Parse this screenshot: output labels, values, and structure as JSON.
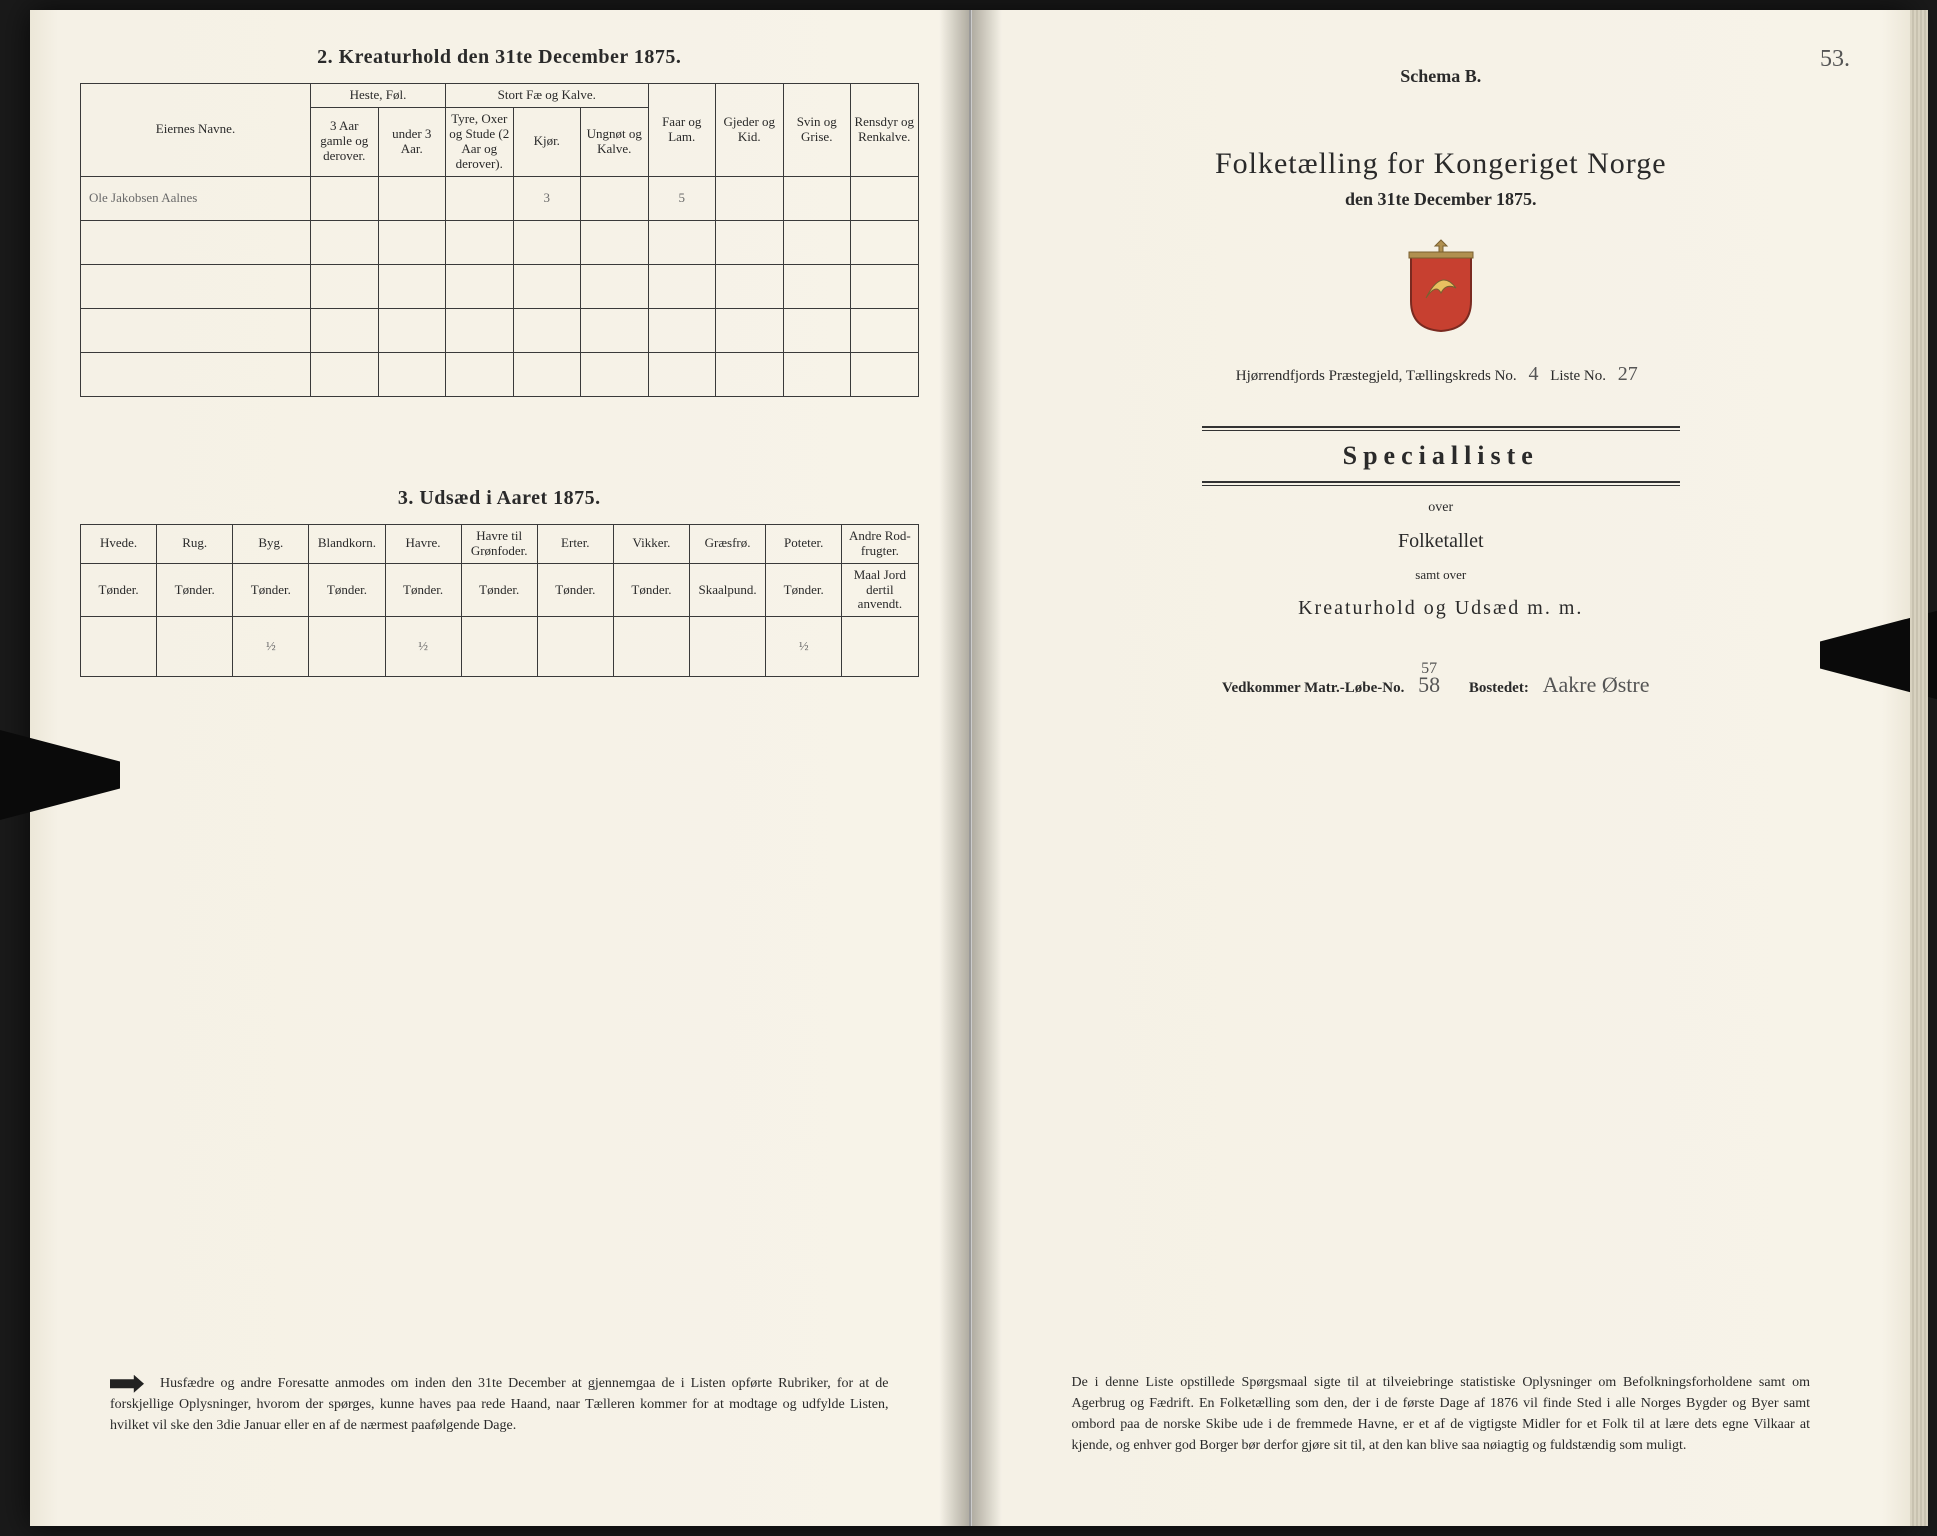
{
  "leftPage": {
    "section2": {
      "title": "2.  Kreaturhold den 31te December 1875.",
      "ownerHeader": "Eiernes Navne.",
      "groupHeaders": {
        "heste": "Heste, Føl.",
        "stortfae": "Stort Fæ og Kalve."
      },
      "cols": {
        "heste1": "3 Aar gamle og derover.",
        "heste2": "under 3 Aar.",
        "fae1": "Tyre, Oxer og Stude (2 Aar og derover).",
        "fae2": "Kjør.",
        "fae3": "Ungnøt og Kalve.",
        "faar": "Faar og Lam.",
        "gjeder": "Gjeder og Kid.",
        "svin": "Svin og Grise.",
        "ren": "Rensdyr og Renkalve."
      },
      "rows": [
        {
          "owner": "Ole Jakobsen Aalnes",
          "values": [
            "",
            "",
            "",
            "3",
            "",
            "5",
            "",
            "",
            ""
          ]
        },
        {
          "owner": "",
          "values": [
            "",
            "",
            "",
            "",
            "",
            "",
            "",
            "",
            ""
          ]
        },
        {
          "owner": "",
          "values": [
            "",
            "",
            "",
            "",
            "",
            "",
            "",
            "",
            ""
          ]
        },
        {
          "owner": "",
          "values": [
            "",
            "",
            "",
            "",
            "",
            "",
            "",
            "",
            ""
          ]
        },
        {
          "owner": "",
          "values": [
            "",
            "",
            "",
            "",
            "",
            "",
            "",
            "",
            ""
          ]
        }
      ]
    },
    "section3": {
      "title": "3.  Udsæd i Aaret 1875.",
      "cols": [
        {
          "name": "Hvede.",
          "unit": "Tønder."
        },
        {
          "name": "Rug.",
          "unit": "Tønder."
        },
        {
          "name": "Byg.",
          "unit": "Tønder."
        },
        {
          "name": "Blandkorn.",
          "unit": "Tønder."
        },
        {
          "name": "Havre.",
          "unit": "Tønder."
        },
        {
          "name": "Havre til Grønfoder.",
          "unit": "Tønder."
        },
        {
          "name": "Erter.",
          "unit": "Tønder."
        },
        {
          "name": "Vikker.",
          "unit": "Tønder."
        },
        {
          "name": "Græsfrø.",
          "unit": "Skaalpund."
        },
        {
          "name": "Poteter.",
          "unit": "Tønder."
        },
        {
          "name": "Andre Rod-frugter.",
          "unit": "Maal Jord dertil anvendt."
        }
      ],
      "row": [
        "",
        "",
        "½",
        "",
        "½",
        "",
        "",
        "",
        "",
        "½",
        ""
      ]
    },
    "footer": "Husfædre og andre Foresatte anmodes om inden den 31te December at gjennemgaa de i Listen opførte Rubriker, for at de forskjellige Oplysninger, hvorom der spørges, kunne haves paa rede Haand, naar Tælleren kommer for at modtage og udfylde Listen, hvilket vil ske den 3die Januar eller en af de nærmest paafølgende Dage."
  },
  "rightPage": {
    "cornerNumber": "53.",
    "schema": "Schema B.",
    "title": "Folketælling for Kongeriget Norge",
    "subtitle": "den 31te December 1875.",
    "parish": "Hjørrendfjords Præstegjeld,  Tællingskreds No.",
    "kredsNo": "4",
    "listeLabel": "Liste No.",
    "listeNo": "27",
    "special": "Specialliste",
    "over": "over",
    "folketallet": "Folketallet",
    "samt": "samt over",
    "kreatur": "Kreaturhold og Udsæd m. m.",
    "vedkommerLabel": "Vedkommer Matr.-Løbe-No.",
    "matrAbove": "57",
    "matrNo": "58",
    "bostedetLabel": "Bostedet:",
    "bostedet": "Aakre Østre",
    "footer": "De i denne Liste opstillede Spørgsmaal sigte til at tilveiebringe statistiske Oplysninger om Befolkningsforholdene samt om Agerbrug og Fædrift.  En Folketælling som den, der i de første Dage af 1876 vil finde Sted i alle Norges Bygder og Byer samt ombord paa de norske Skibe ude i de fremmede Havne, er et af de vigtigste Midler for et Folk til at lære dets egne Vilkaar at kjende, og enhver god Borger bør derfor gjøre sit til, at den kan blive saa nøiagtig og fuldstændig som muligt."
  },
  "colors": {
    "paper": "#f5f1e6",
    "ink": "#2a2a2a",
    "handwriting": "#6a6a6a",
    "border": "#3a3a3a"
  }
}
